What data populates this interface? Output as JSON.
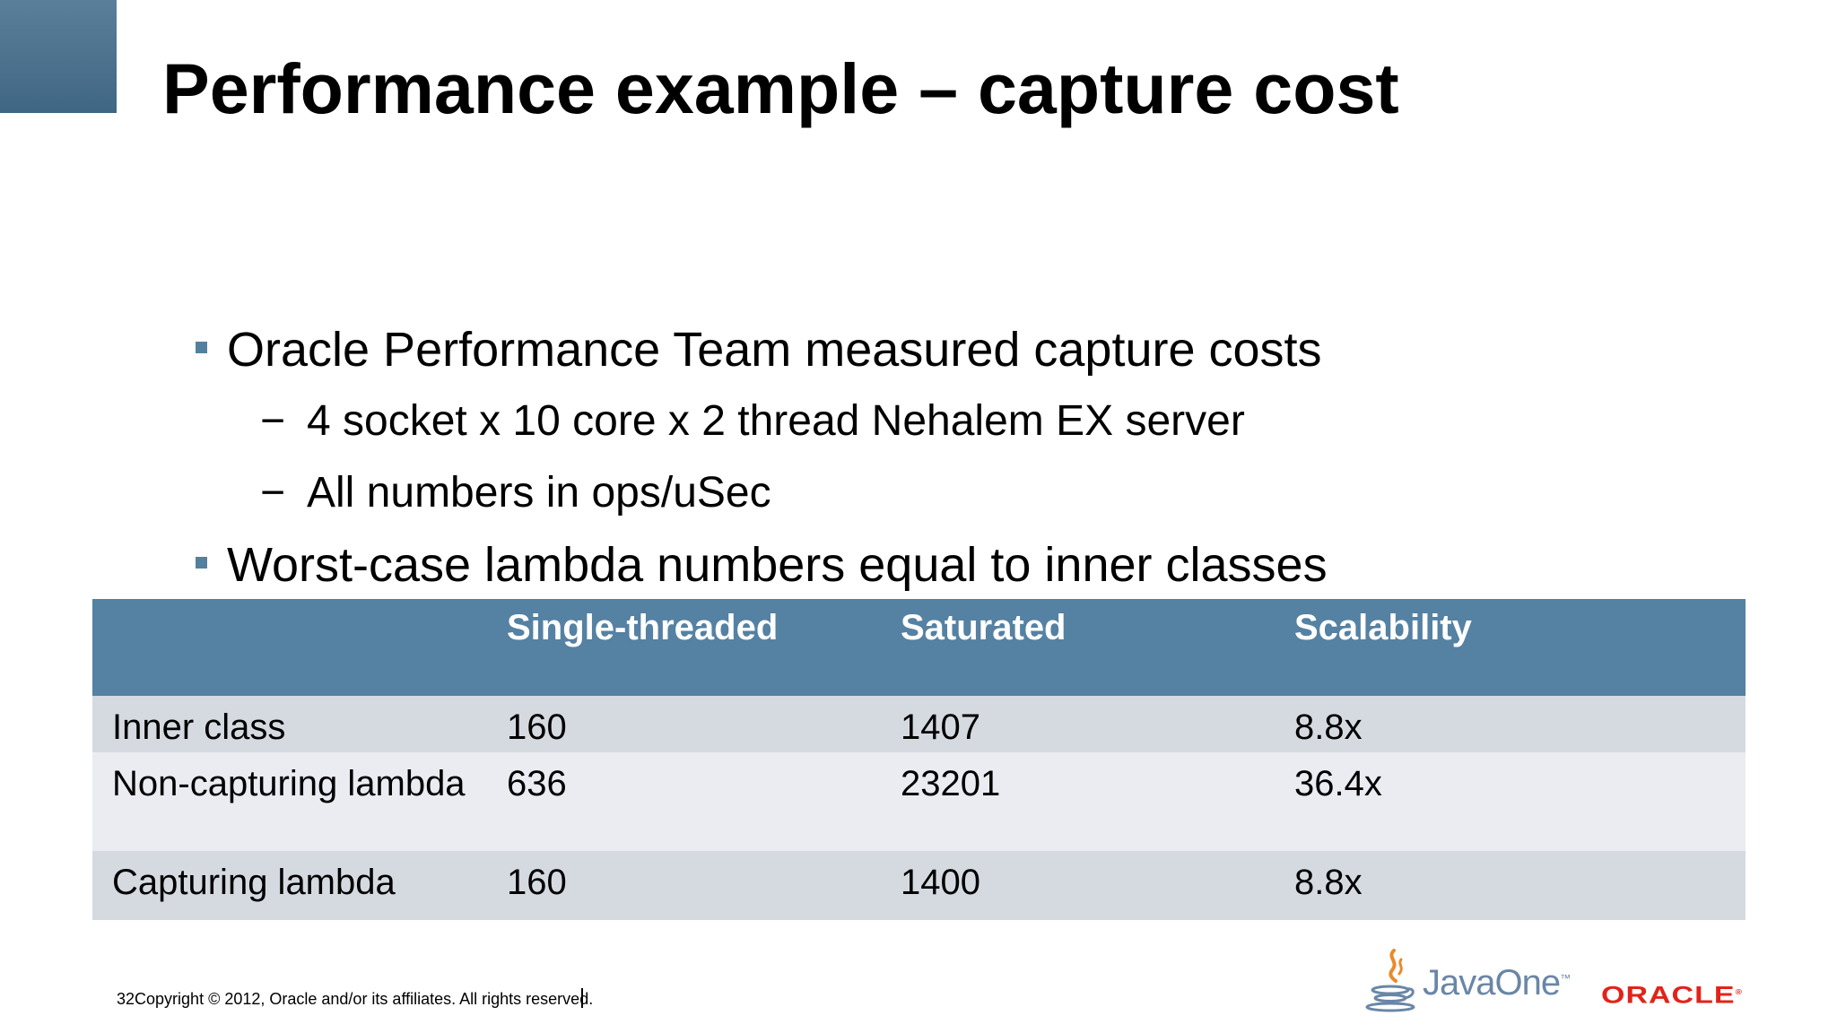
{
  "slide": {
    "title": "Performance example – capture cost",
    "bullets": [
      {
        "text": "Oracle Performance Team measured capture costs",
        "sub": [
          "4 socket x 10 core x 2 thread Nehalem EX server",
          "All numbers in ops/uSec"
        ]
      },
      {
        "text": "Worst-case lambda numbers equal to inner classes",
        "sub": []
      }
    ],
    "sub_marker": "−"
  },
  "table": {
    "headers": [
      "",
      "Single-threaded",
      "Saturated",
      "Scalability"
    ],
    "rows": [
      [
        "Inner class",
        "160",
        "1407",
        "8.8x"
      ],
      [
        "Non-capturing lambda",
        "636",
        "23201",
        "36.4x"
      ],
      [
        "Capturing lambda",
        "160",
        "1400",
        "8.8x"
      ]
    ]
  },
  "footer": {
    "page_number": "32",
    "copyright": "Copyright © 2012, Oracle and/or its affiliates. All rights reserved."
  },
  "logos": {
    "javaone": "JavaOne",
    "javaone_tm": "™",
    "oracle": "ORACLE",
    "oracle_reg": "®",
    "javaone_icon": "java-cup-icon"
  },
  "colors": {
    "accent": "#5581a3",
    "row_dark": "#d5dae1",
    "row_light": "#eaecf2",
    "oracle_red": "#e2231a",
    "javaone_blue": "#6a86a6",
    "javaone_orange": "#e88a2d"
  }
}
